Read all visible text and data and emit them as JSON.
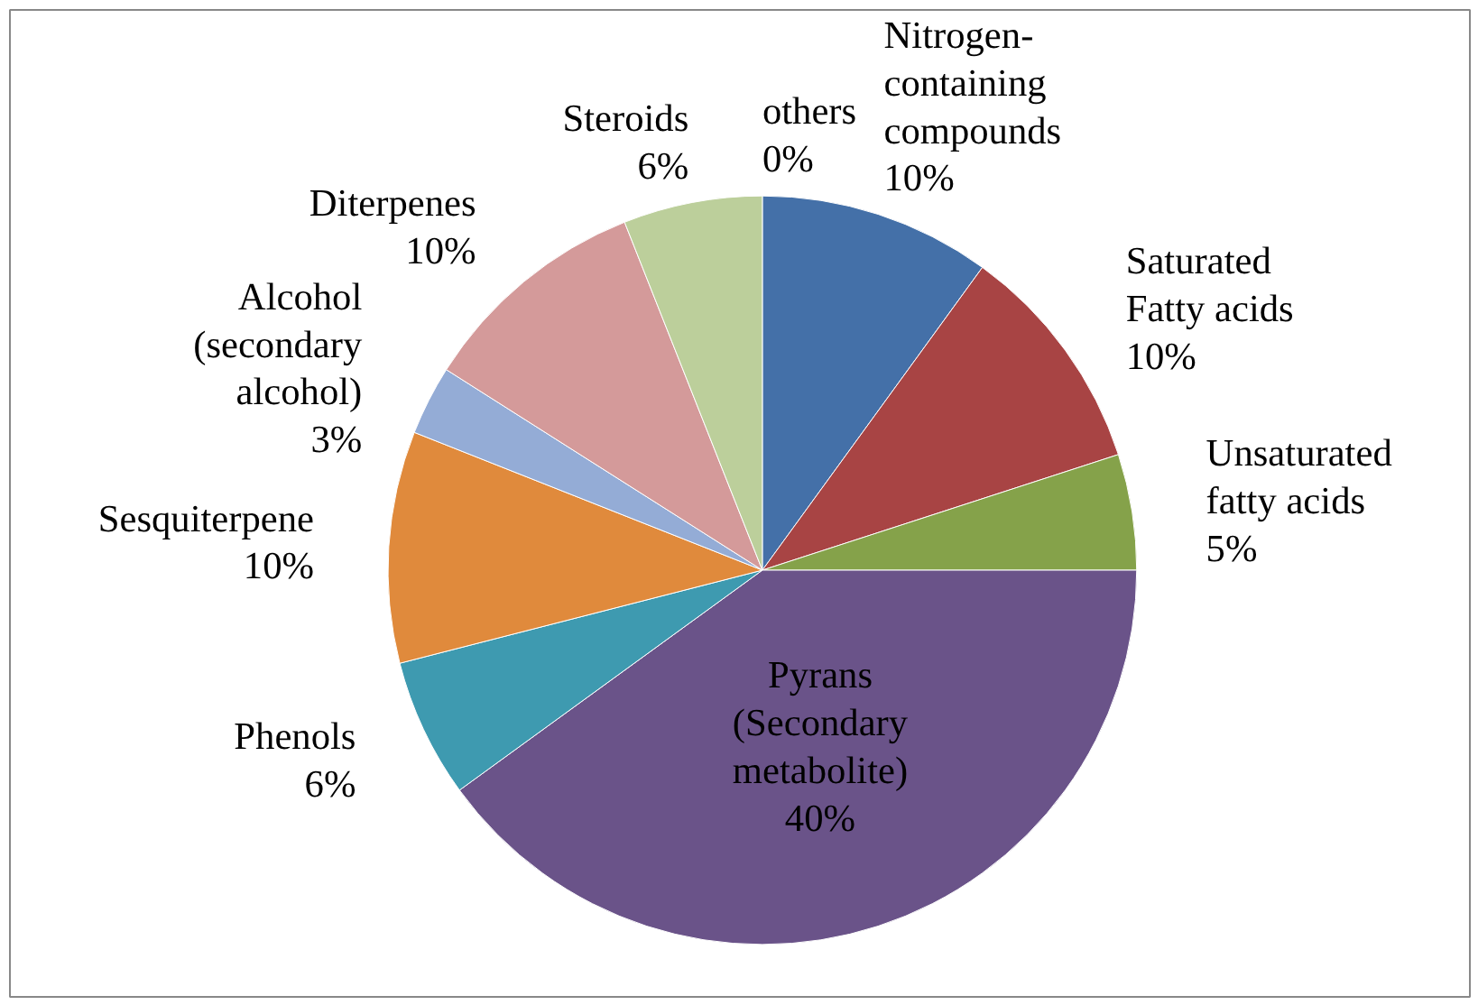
{
  "chart_data": {
    "type": "pie",
    "categories": [
      "Nitrogen-\ncontaining\ncompounds",
      "Saturated\nFatty acids",
      "Unsaturated\nfatty acids",
      "Pyrans\n(Secondary\nmetabolite)",
      "Phenols",
      "Sesquiterpene",
      "Alcohol\n(secondary\nalcohol)",
      "Diterpenes",
      "Steroids",
      "others"
    ],
    "values": [
      10,
      10,
      5,
      40,
      6,
      10,
      3,
      10,
      6,
      0
    ],
    "value_labels": [
      "10%",
      "10%",
      "5%",
      "40%",
      "6%",
      "10%",
      "3%",
      "10%",
      "6%",
      "0%"
    ],
    "colors": [
      "#4470a8",
      "#a84444",
      "#85a24a",
      "#6a5389",
      "#3e9ab0",
      "#e08a3c",
      "#94acd6",
      "#d49a9a",
      "#bccf9b",
      "#a796bd"
    ]
  }
}
